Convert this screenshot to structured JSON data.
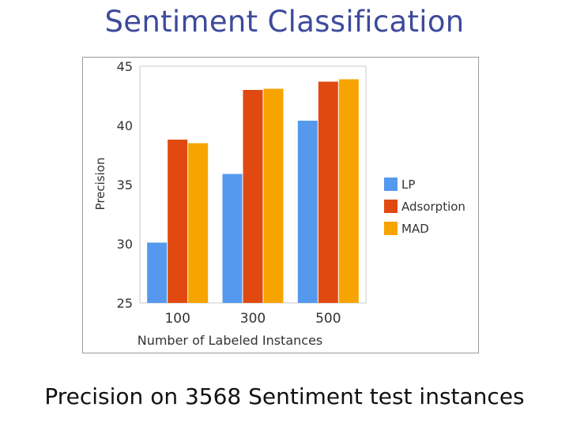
{
  "slide": {
    "title": "Sentiment Classification",
    "caption": "Precision on 3568 Sentiment test instances"
  },
  "chart_data": {
    "type": "bar",
    "xlabel": "Number of Labeled Instances",
    "ylabel": "Precision",
    "ylim": [
      25,
      45
    ],
    "yticks": [
      25,
      30,
      35,
      40,
      45
    ],
    "categories": [
      "100",
      "300",
      "500"
    ],
    "series": [
      {
        "name": "LP",
        "color": "#5599ee",
        "values": [
          30.1,
          35.9,
          40.4
        ]
      },
      {
        "name": "Adsorption",
        "color": "#e04a10",
        "values": [
          38.8,
          43.0,
          43.7
        ]
      },
      {
        "name": "MAD",
        "color": "#f7a400",
        "values": [
          38.5,
          43.1,
          43.9
        ]
      }
    ],
    "legend_position": "right",
    "grid": false
  }
}
